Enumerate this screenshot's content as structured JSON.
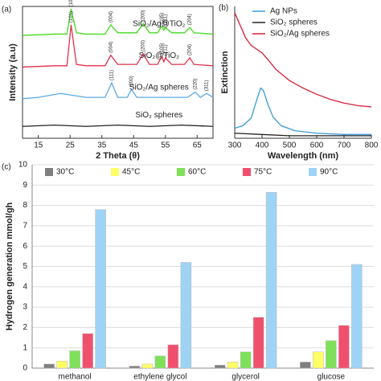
{
  "chart_data": [
    {
      "type": "line",
      "panel_label": "(a)",
      "xlabel": "2 Theta (θ)",
      "ylabel": "Intensity (a.u)",
      "xlim": [
        10,
        70
      ],
      "xticks": [
        15,
        25,
        35,
        45,
        55,
        65
      ],
      "ylim": [
        0,
        100
      ],
      "legend": "inline",
      "series": [
        {
          "name": "SiO₂/Ag@TiO₂",
          "color": "#44d922",
          "x": [
            10,
            20,
            24,
            25.3,
            27,
            30,
            36,
            37.8,
            40,
            46,
            48,
            50,
            52.5,
            53.9,
            54.5,
            55,
            57,
            61,
            62.7,
            64,
            70
          ],
          "values": [
            78,
            79,
            79,
            98,
            80,
            79,
            79,
            86,
            80,
            80,
            87,
            80,
            80,
            85,
            82,
            84,
            80,
            80,
            84,
            80,
            79
          ],
          "peaks": [
            {
              "label": "(101)",
              "x": 25.3
            },
            {
              "label": "(004)",
              "x": 37.8
            },
            {
              "label": "(200)",
              "x": 48
            },
            {
              "label": "(105)",
              "x": 53.9
            },
            {
              "label": "(211)",
              "x": 55
            },
            {
              "label": "(204)",
              "x": 62.7
            }
          ]
        },
        {
          "name": "SiO₂@TiO₂",
          "color": "#e2304c",
          "x": [
            10,
            20,
            24,
            25.3,
            27,
            30,
            36,
            37.8,
            40,
            46,
            48,
            50,
            52.5,
            53.9,
            54.5,
            55,
            57,
            61,
            62.7,
            64,
            70
          ],
          "values": [
            54,
            55,
            55,
            86,
            56,
            55,
            55,
            63,
            56,
            56,
            64,
            56,
            56,
            62,
            58,
            61,
            56,
            56,
            61,
            56,
            55
          ],
          "peaks": [
            {
              "label": "(101)",
              "x": 25.3
            },
            {
              "label": "(004)",
              "x": 37.8
            },
            {
              "label": "(200)",
              "x": 48
            },
            {
              "label": "(105)",
              "x": 53.9
            },
            {
              "label": "(211)",
              "x": 55
            },
            {
              "label": "(204)",
              "x": 62.7
            }
          ]
        },
        {
          "name": "SiO₂/Ag spheres",
          "color": "#5aa9e6",
          "x": [
            10,
            15,
            22,
            30,
            36,
            38.1,
            40,
            43,
            44.3,
            46,
            55,
            62,
            64.4,
            66,
            68,
            70
          ],
          "values": [
            30,
            31,
            34,
            31,
            31,
            42,
            31,
            31,
            37,
            31,
            31,
            31,
            35,
            31,
            34,
            31
          ],
          "peaks": [
            {
              "label": "(111)",
              "x": 38.1
            },
            {
              "label": "(200)",
              "x": 44.3
            },
            {
              "label": "(220)",
              "x": 64.4
            },
            {
              "label": "(311)",
              "x": 68
            }
          ]
        },
        {
          "name": "SiO₂ spheres",
          "color": "#222222",
          "x": [
            10,
            20,
            30,
            40,
            50,
            60,
            70
          ],
          "values": [
            9,
            10,
            9,
            10,
            9,
            10,
            9
          ],
          "peaks": []
        }
      ]
    },
    {
      "type": "line",
      "panel_label": "(b)",
      "xlabel": "Wavelength (nm)",
      "ylabel": "Extinction",
      "xlim": [
        300,
        800
      ],
      "xticks": [
        300,
        400,
        500,
        600,
        700,
        800
      ],
      "ylim": [
        0,
        1.05
      ],
      "legend": "upper right",
      "series": [
        {
          "name": "Ag NPs",
          "color": "#3a9ad9",
          "x": [
            300,
            330,
            360,
            380,
            395,
            405,
            420,
            440,
            470,
            520,
            600,
            700,
            800
          ],
          "values": [
            0.08,
            0.1,
            0.16,
            0.3,
            0.4,
            0.38,
            0.28,
            0.17,
            0.1,
            0.06,
            0.04,
            0.03,
            0.03
          ]
        },
        {
          "name": "SiO₂ spheres",
          "color": "#222222",
          "x": [
            300,
            400,
            500,
            600,
            700,
            800
          ],
          "values": [
            0.04,
            0.03,
            0.02,
            0.02,
            0.02,
            0.02
          ]
        },
        {
          "name": "SiO₂/Ag spheres",
          "color": "#d4203a",
          "x": [
            300,
            320,
            340,
            360,
            380,
            400,
            420,
            450,
            500,
            550,
            600,
            650,
            700,
            750,
            800
          ],
          "values": [
            1.0,
            0.9,
            0.8,
            0.74,
            0.71,
            0.68,
            0.63,
            0.55,
            0.46,
            0.4,
            0.35,
            0.31,
            0.28,
            0.26,
            0.25
          ]
        }
      ]
    },
    {
      "type": "bar",
      "panel_label": "(c)",
      "ylabel": "Hydrogen generation mmol/gh",
      "categories": [
        "methanol",
        "ethylene glycol",
        "glycerol",
        "glucose"
      ],
      "ylim": [
        0,
        10
      ],
      "yticks": [
        0,
        1,
        2,
        3,
        4,
        5,
        6,
        7,
        8,
        9,
        10
      ],
      "grid": true,
      "legend": "top",
      "series": [
        {
          "name": "30°C",
          "color": "#7f7f7f",
          "values": [
            0.2,
            0.1,
            0.15,
            0.3
          ]
        },
        {
          "name": "45°C",
          "color": "#ffff66",
          "values": [
            0.35,
            0.2,
            0.3,
            0.8
          ]
        },
        {
          "name": "60°C",
          "color": "#7fe05a",
          "values": [
            0.85,
            0.6,
            0.8,
            1.35
          ]
        },
        {
          "name": "75°C",
          "color": "#f0506e",
          "values": [
            1.7,
            1.15,
            2.5,
            2.1
          ]
        },
        {
          "name": "90°C",
          "color": "#9fd3f5",
          "values": [
            7.8,
            5.2,
            8.65,
            5.1
          ]
        }
      ]
    }
  ]
}
